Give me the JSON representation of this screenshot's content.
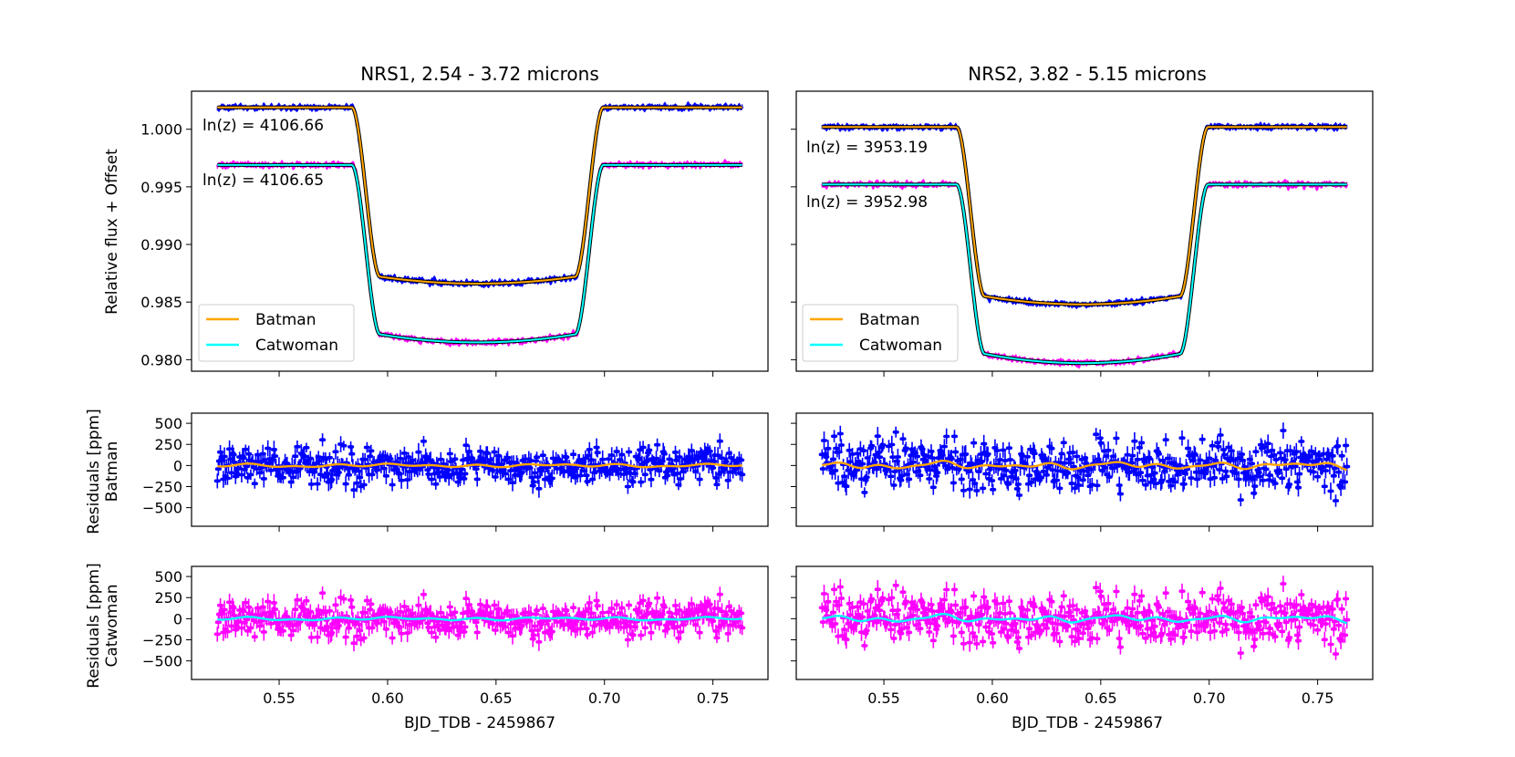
{
  "colors": {
    "batman_data": "#0000ff",
    "catwoman_data": "#ff00ff",
    "batman_model": "#ffa500",
    "catwoman_model": "#00ffff",
    "model_edge": "#000000"
  },
  "chart_data": [
    {
      "type": "line",
      "panel": "nrs1-lightcurve",
      "title": "NRS1, 2.54 - 3.72 microns",
      "xlabel": "",
      "ylabel": "Relative flux + Offset",
      "xlim": [
        0.5096,
        0.7754
      ],
      "ylim": [
        0.979,
        1.0033
      ],
      "yticks": [
        1.0,
        0.995,
        0.99,
        0.985,
        0.98
      ],
      "ytick_labels": [
        "1.000",
        "0.995",
        "0.990",
        "0.985",
        "0.980"
      ],
      "xticks": [
        0.55,
        0.6,
        0.65,
        0.7,
        0.75
      ],
      "x_range": [
        0.5215,
        0.7635
      ],
      "transit": {
        "t1": 0.5835,
        "t2": 0.5965,
        "t3": 0.6865,
        "t4": 0.6995
      },
      "series": [
        {
          "name": "Batman",
          "baseline": 1.0019,
          "bottom_start": 0.9872,
          "bottom_end": 0.9872,
          "bottom_mid": 0.9866,
          "color": "#0000ff",
          "model_color": "#ffa500"
        },
        {
          "name": "Catwoman",
          "baseline": 0.9969,
          "bottom_start": 0.9822,
          "bottom_end": 0.9822,
          "bottom_mid": 0.9815,
          "color": "#ff00ff",
          "model_color": "#00ffff"
        }
      ],
      "annotations": [
        "ln(z) = 4106.66",
        "ln(z) = 4106.65"
      ],
      "legend": {
        "position": "lower-left",
        "entries": [
          "Batman",
          "Catwoman"
        ]
      }
    },
    {
      "type": "line",
      "panel": "nrs2-lightcurve",
      "title": "NRS2, 3.82 - 5.15 microns",
      "xlabel": "",
      "ylabel": "",
      "xlim": [
        0.5096,
        0.7754
      ],
      "ylim": [
        0.979,
        1.0033
      ],
      "yticks": [
        1.0,
        0.995,
        0.99,
        0.985,
        0.98
      ],
      "xticks": [
        0.55,
        0.6,
        0.65,
        0.7,
        0.75
      ],
      "x_range": [
        0.5215,
        0.7635
      ],
      "transit": {
        "t1": 0.5835,
        "t2": 0.5965,
        "t3": 0.6865,
        "t4": 0.6995
      },
      "series": [
        {
          "name": "Batman",
          "baseline": 1.0002,
          "bottom_start": 0.9855,
          "bottom_end": 0.9855,
          "bottom_mid": 0.9848,
          "color": "#0000ff",
          "model_color": "#ffa500"
        },
        {
          "name": "Catwoman",
          "baseline": 0.9952,
          "bottom_start": 0.9805,
          "bottom_end": 0.9805,
          "bottom_mid": 0.9797,
          "color": "#ff00ff",
          "model_color": "#00ffff"
        }
      ],
      "annotations": [
        "ln(z) = 3953.19",
        "ln(z) = 3952.98"
      ],
      "legend": {
        "position": "lower-left",
        "entries": [
          "Batman",
          "Catwoman"
        ]
      }
    },
    {
      "type": "scatter",
      "panel": "nrs1-residuals-batman",
      "ylabel": "Residuals [ppm]\nBatman",
      "ylabel_lines": [
        "Residuals [ppm]",
        "Batman"
      ],
      "xlim": [
        0.5096,
        0.7754
      ],
      "ylim": [
        -720,
        620
      ],
      "yticks": [
        500,
        250,
        0,
        -250,
        -500
      ],
      "ytick_labels": [
        "500",
        "250",
        "0",
        "−250",
        "−500"
      ],
      "xticks": [
        0.55,
        0.6,
        0.65,
        0.7,
        0.75
      ],
      "x_range": [
        0.5215,
        0.7635
      ],
      "noise_ppm": 110,
      "trend_ppm": 40,
      "seed": 11,
      "data_color": "#0000ff",
      "model_color": "#ffa500"
    },
    {
      "type": "scatter",
      "panel": "nrs2-residuals-batman",
      "ylabel": "",
      "xlim": [
        0.5096,
        0.7754
      ],
      "ylim": [
        -720,
        620
      ],
      "yticks": [
        500,
        250,
        0,
        -250,
        -500
      ],
      "xticks": [
        0.55,
        0.6,
        0.65,
        0.7,
        0.75
      ],
      "x_range": [
        0.5215,
        0.7635
      ],
      "noise_ppm": 145,
      "trend_ppm": 75,
      "seed": 23,
      "data_color": "#0000ff",
      "model_color": "#ffa500"
    },
    {
      "type": "scatter",
      "panel": "nrs1-residuals-catwoman",
      "ylabel": "Residuals [ppm]\nCatwoman",
      "ylabel_lines": [
        "Residuals [ppm]",
        "Catwoman"
      ],
      "xlabel": "BJD_TDB - 2459867",
      "xlim": [
        0.5096,
        0.7754
      ],
      "ylim": [
        -720,
        620
      ],
      "yticks": [
        500,
        250,
        0,
        -250,
        -500
      ],
      "ytick_labels": [
        "500",
        "250",
        "0",
        "−250",
        "−500"
      ],
      "xticks": [
        0.55,
        0.6,
        0.65,
        0.7,
        0.75
      ],
      "xtick_labels": [
        "0.55",
        "0.60",
        "0.65",
        "0.70",
        "0.75"
      ],
      "x_range": [
        0.5215,
        0.7635
      ],
      "noise_ppm": 110,
      "trend_ppm": 40,
      "seed": 11,
      "data_color": "#ff00ff",
      "model_color": "#00ffff"
    },
    {
      "type": "scatter",
      "panel": "nrs2-residuals-catwoman",
      "ylabel": "",
      "xlabel": "BJD_TDB - 2459867",
      "xlim": [
        0.5096,
        0.7754
      ],
      "ylim": [
        -720,
        620
      ],
      "yticks": [
        500,
        250,
        0,
        -250,
        -500
      ],
      "xticks": [
        0.55,
        0.6,
        0.65,
        0.7,
        0.75
      ],
      "xtick_labels": [
        "0.55",
        "0.60",
        "0.65",
        "0.70",
        "0.75"
      ],
      "x_range": [
        0.5215,
        0.7635
      ],
      "noise_ppm": 145,
      "trend_ppm": 75,
      "seed": 23,
      "data_color": "#ff00ff",
      "model_color": "#00ffff"
    }
  ]
}
